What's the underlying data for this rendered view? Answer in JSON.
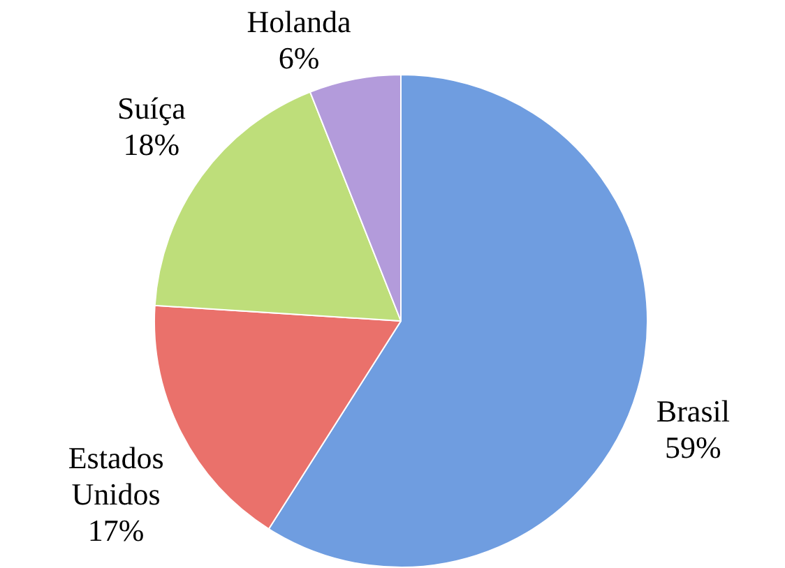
{
  "chart_data": {
    "type": "pie",
    "categories": [
      "Brasil",
      "Estados Unidos",
      "Suíça",
      "Holanda"
    ],
    "values": [
      59,
      17,
      18,
      6
    ],
    "colors": [
      "#6f9de0",
      "#ea716b",
      "#bede7a",
      "#b39bdb"
    ],
    "value_labels": [
      "59%",
      "17%",
      "18%",
      "6%"
    ],
    "legend": false
  }
}
